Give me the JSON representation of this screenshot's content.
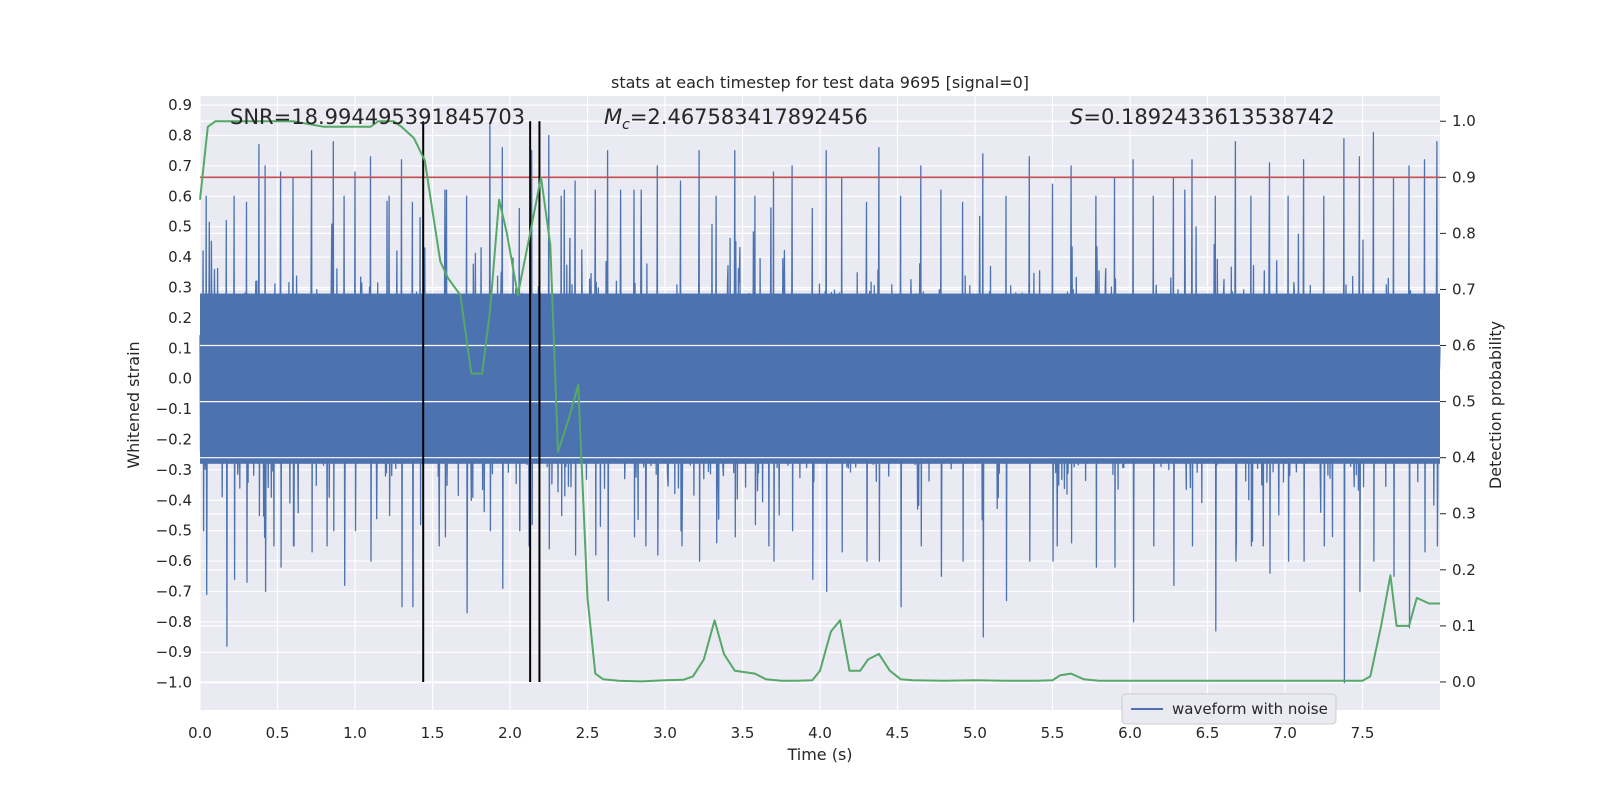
{
  "chart_data": {
    "type": "line",
    "title": "stats at each timestep for test data 9695 [signal=0]",
    "xlabel": "Time (s)",
    "ylabel_left": "Whitened strain",
    "ylabel_right": "Detection probability",
    "xlim": [
      0.0,
      8.0
    ],
    "ylim_left": [
      -1.09,
      0.93
    ],
    "ylim_right": [
      -0.05,
      1.045
    ],
    "x_ticks": [
      "0.0",
      "0.5",
      "1.0",
      "1.5",
      "2.0",
      "2.5",
      "3.0",
      "3.5",
      "4.0",
      "4.5",
      "5.0",
      "5.5",
      "6.0",
      "6.5",
      "7.0",
      "7.5"
    ],
    "y_ticks_left": [
      "0.9",
      "0.8",
      "0.7",
      "0.6",
      "0.5",
      "0.4",
      "0.3",
      "0.2",
      "0.1",
      "0.0",
      "−0.1",
      "−0.2",
      "−0.3",
      "−0.4",
      "−0.5",
      "−0.6",
      "−0.7",
      "−0.8",
      "−0.9",
      "−1.0"
    ],
    "y_ticks_right": [
      "1.0",
      "0.9",
      "0.8",
      "0.7",
      "0.6",
      "0.5",
      "0.4",
      "0.3",
      "0.2",
      "0.1",
      "0.0"
    ],
    "annotations": {
      "snr": "SNR=18.994495391845703",
      "mc_symbol": "M",
      "mc_sub": "c",
      "mc_value": "=2.467583417892456",
      "s_symbol": "S",
      "s_value": "=0.1892433613538742"
    },
    "legend": {
      "label": "waveform with noise",
      "position": "lower-right"
    },
    "threshold_probability": 0.9,
    "vertical_markers_s": [
      1.44,
      2.13,
      2.19
    ],
    "waveform": {
      "name": "waveform with noise",
      "description_values": {
        "core_band": [
          -0.28,
          0.28
        ],
        "max": 0.84,
        "min": -1.0
      },
      "spikes": [
        [
          0.02,
          0.42,
          -0.5
        ],
        [
          0.04,
          0.6,
          -0.71
        ],
        [
          0.17,
          0.52,
          -0.88
        ],
        [
          0.22,
          0.6,
          -0.66
        ],
        [
          0.3,
          0.58,
          -0.67
        ],
        [
          0.38,
          0.77,
          -0.45
        ],
        [
          0.42,
          0.7,
          -0.7
        ],
        [
          0.52,
          0.68,
          -0.62
        ],
        [
          0.6,
          0.66,
          -0.55
        ],
        [
          0.72,
          0.75,
          -0.57
        ],
        [
          0.86,
          0.78,
          -0.5
        ],
        [
          0.93,
          0.6,
          -0.68
        ],
        [
          1.0,
          0.68,
          -0.5
        ],
        [
          1.1,
          0.73,
          -0.6
        ],
        [
          1.22,
          0.6,
          -0.45
        ],
        [
          1.3,
          0.72,
          -0.75
        ],
        [
          1.37,
          0.58,
          -0.75
        ],
        [
          1.42,
          0.53,
          -0.48
        ],
        [
          1.58,
          0.62,
          -0.52
        ],
        [
          1.72,
          0.6,
          -0.77
        ],
        [
          1.87,
          0.84,
          -0.5
        ],
        [
          1.95,
          0.76,
          -0.69
        ],
        [
          2.06,
          0.56,
          -0.5
        ],
        [
          2.14,
          0.75,
          -0.48
        ],
        [
          2.25,
          0.8,
          -0.56
        ],
        [
          2.33,
          0.6,
          -0.45
        ],
        [
          2.42,
          0.65,
          -0.58
        ],
        [
          2.55,
          0.62,
          -0.58
        ],
        [
          2.63,
          0.75,
          -0.73
        ],
        [
          2.8,
          0.62,
          -0.52
        ],
        [
          2.95,
          0.7,
          -0.58
        ],
        [
          3.1,
          0.65,
          -0.5
        ],
        [
          3.22,
          0.75,
          -0.6
        ],
        [
          3.33,
          0.6,
          -0.54
        ],
        [
          3.45,
          0.75,
          -0.52
        ],
        [
          3.58,
          0.6,
          -0.48
        ],
        [
          3.7,
          0.68,
          -0.6
        ],
        [
          3.82,
          0.7,
          -0.5
        ],
        [
          3.95,
          0.56,
          -0.66
        ],
        [
          4.04,
          0.75,
          -0.7
        ],
        [
          4.14,
          0.66,
          -0.57
        ],
        [
          4.3,
          0.58,
          -0.6
        ],
        [
          4.38,
          0.76,
          -0.6
        ],
        [
          4.52,
          0.6,
          -0.75
        ],
        [
          4.65,
          0.7,
          -0.55
        ],
        [
          4.78,
          0.62,
          -0.65
        ],
        [
          4.92,
          0.58,
          -0.6
        ],
        [
          5.05,
          0.74,
          -0.85
        ],
        [
          5.2,
          0.6,
          -0.73
        ],
        [
          5.35,
          0.73,
          -0.6
        ],
        [
          5.5,
          0.64,
          -0.6
        ],
        [
          5.62,
          0.7,
          -0.54
        ],
        [
          5.78,
          0.6,
          -0.62
        ],
        [
          5.9,
          0.66,
          -0.62
        ],
        [
          6.02,
          0.72,
          -0.8
        ],
        [
          6.15,
          0.6,
          -0.55
        ],
        [
          6.28,
          0.66,
          -0.68
        ],
        [
          6.4,
          0.72,
          -0.55
        ],
        [
          6.55,
          0.6,
          -0.83
        ],
        [
          6.68,
          0.78,
          -0.6
        ],
        [
          6.78,
          0.6,
          -0.55
        ],
        [
          6.9,
          0.71,
          -0.64
        ],
        [
          7.02,
          0.6,
          -0.6
        ],
        [
          7.12,
          0.72,
          -0.6
        ],
        [
          7.25,
          0.6,
          -0.55
        ],
        [
          7.38,
          0.79,
          -1.0
        ],
        [
          7.48,
          0.73,
          -0.7
        ],
        [
          7.57,
          0.81,
          -0.6
        ],
        [
          7.7,
          0.66,
          -0.65
        ],
        [
          7.8,
          0.7,
          -0.82
        ],
        [
          7.9,
          0.72,
          -0.57
        ],
        [
          7.98,
          0.78,
          -0.55
        ]
      ]
    },
    "detection_probability": {
      "x": [
        0.0,
        0.05,
        0.1,
        0.2,
        0.3,
        0.4,
        0.5,
        0.6,
        0.7,
        0.8,
        0.9,
        1.0,
        1.05,
        1.1,
        1.15,
        1.2,
        1.25,
        1.3,
        1.38,
        1.45,
        1.5,
        1.55,
        1.6,
        1.68,
        1.75,
        1.82,
        1.87,
        1.93,
        1.98,
        2.05,
        2.13,
        2.2,
        2.26,
        2.31,
        2.38,
        2.44,
        2.5,
        2.55,
        2.6,
        2.7,
        2.85,
        3.0,
        3.12,
        3.18,
        3.25,
        3.32,
        3.38,
        3.45,
        3.58,
        3.65,
        3.75,
        3.85,
        3.95,
        4.0,
        4.07,
        4.13,
        4.19,
        4.26,
        4.31,
        4.38,
        4.45,
        4.52,
        4.6,
        4.8,
        5.0,
        5.2,
        5.4,
        5.5,
        5.55,
        5.62,
        5.7,
        5.8,
        5.9,
        6.0,
        6.2,
        6.5,
        6.8,
        7.0,
        7.2,
        7.4,
        7.5,
        7.55,
        7.62,
        7.68,
        7.72,
        7.8,
        7.85,
        7.93,
        8.0
      ],
      "y": [
        0.86,
        0.99,
        1.0,
        1.0,
        1.0,
        1.0,
        1.0,
        1.0,
        0.995,
        0.99,
        0.99,
        0.99,
        0.99,
        0.99,
        1.0,
        1.0,
        1.0,
        0.99,
        0.97,
        0.93,
        0.84,
        0.75,
        0.72,
        0.69,
        0.55,
        0.55,
        0.66,
        0.86,
        0.8,
        0.69,
        0.8,
        0.9,
        0.78,
        0.41,
        0.47,
        0.53,
        0.15,
        0.015,
        0.005,
        0.002,
        0.001,
        0.003,
        0.004,
        0.01,
        0.04,
        0.11,
        0.05,
        0.02,
        0.015,
        0.005,
        0.002,
        0.002,
        0.003,
        0.02,
        0.09,
        0.11,
        0.02,
        0.02,
        0.04,
        0.05,
        0.02,
        0.005,
        0.003,
        0.002,
        0.003,
        0.002,
        0.002,
        0.003,
        0.012,
        0.015,
        0.005,
        0.002,
        0.002,
        0.002,
        0.002,
        0.002,
        0.002,
        0.002,
        0.002,
        0.002,
        0.002,
        0.01,
        0.1,
        0.19,
        0.1,
        0.1,
        0.15,
        0.14,
        0.14
      ]
    },
    "colors": {
      "background": "#eaeaf2",
      "grid": "#ffffff",
      "waveform": "#4c72b0",
      "probability": "#55a868",
      "threshold": "#c44e52",
      "markers": "#000000"
    },
    "grid": true
  }
}
